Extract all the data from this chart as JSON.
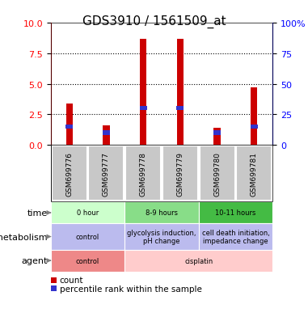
{
  "title": "GDS3910 / 1561509_at",
  "samples": [
    "GSM699776",
    "GSM699777",
    "GSM699778",
    "GSM699779",
    "GSM699780",
    "GSM699781"
  ],
  "count_values": [
    3.4,
    1.6,
    8.7,
    8.7,
    1.4,
    4.7
  ],
  "percentile_values": [
    1.5,
    1.0,
    3.0,
    3.0,
    1.0,
    1.5
  ],
  "bar_width": 0.18,
  "ylim_left": [
    0,
    10
  ],
  "ylim_right": [
    0,
    100
  ],
  "yticks_left": [
    0,
    2.5,
    5,
    7.5,
    10
  ],
  "yticks_right": [
    0,
    25,
    50,
    75,
    100
  ],
  "ytick_labels_right": [
    "0",
    "25",
    "50",
    "75",
    "100%"
  ],
  "color_count": "#cc0000",
  "color_percentile": "#3333cc",
  "table_bg_gray": "#c8c8c8",
  "time_cells": [
    [
      0,
      1,
      "0 hour",
      "#ccffcc"
    ],
    [
      2,
      3,
      "8-9 hours",
      "#88dd88"
    ],
    [
      4,
      5,
      "10-11 hours",
      "#44bb44"
    ]
  ],
  "meta_cells": [
    [
      0,
      1,
      "control",
      "#bbbbee"
    ],
    [
      2,
      3,
      "glycolysis induction,\npH change",
      "#bbbbee"
    ],
    [
      4,
      5,
      "cell death initiation,\nimpedance change",
      "#bbbbee"
    ]
  ],
  "agent_cells": [
    [
      0,
      1,
      "control",
      "#ee8888"
    ],
    [
      2,
      5,
      "cisplatin",
      "#ffcccc"
    ]
  ],
  "row_labels": [
    "time",
    "metabolism",
    "agent"
  ],
  "legend_count": "count",
  "legend_percentile": "percentile rank within the sample"
}
